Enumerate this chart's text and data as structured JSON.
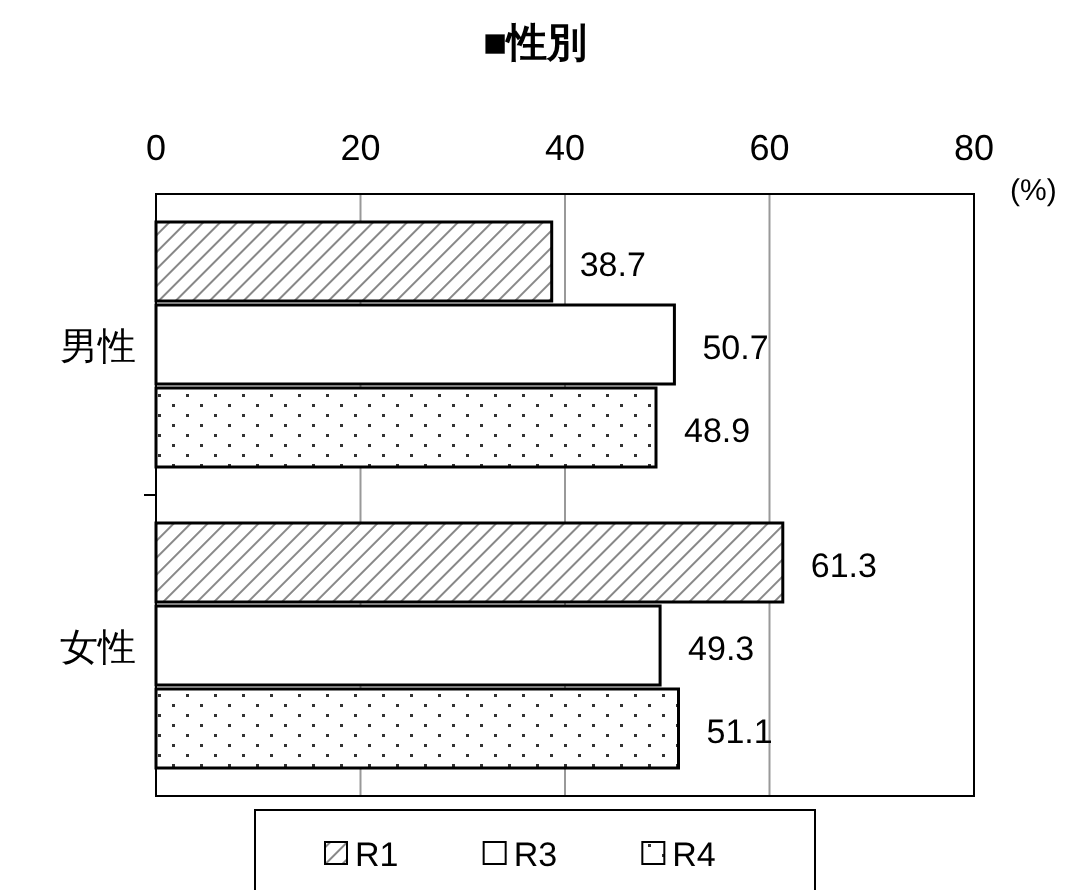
{
  "chart_data": {
    "type": "bar",
    "orientation": "horizontal",
    "title": "■性別",
    "xlabel": "(%)",
    "categories": [
      "男性",
      "女性"
    ],
    "series": [
      {
        "name": "R1",
        "values": [
          38.7,
          61.3
        ]
      },
      {
        "name": "R3",
        "color": "#ffffff",
        "values": [
          50.7,
          49.3
        ]
      },
      {
        "name": "R4",
        "values": [
          48.9,
          51.1
        ]
      }
    ],
    "xlim": [
      0,
      80
    ],
    "xticks": [
      0,
      20,
      40,
      60,
      80
    ],
    "grid": "x",
    "legend": "bottom",
    "data_labels": true
  }
}
